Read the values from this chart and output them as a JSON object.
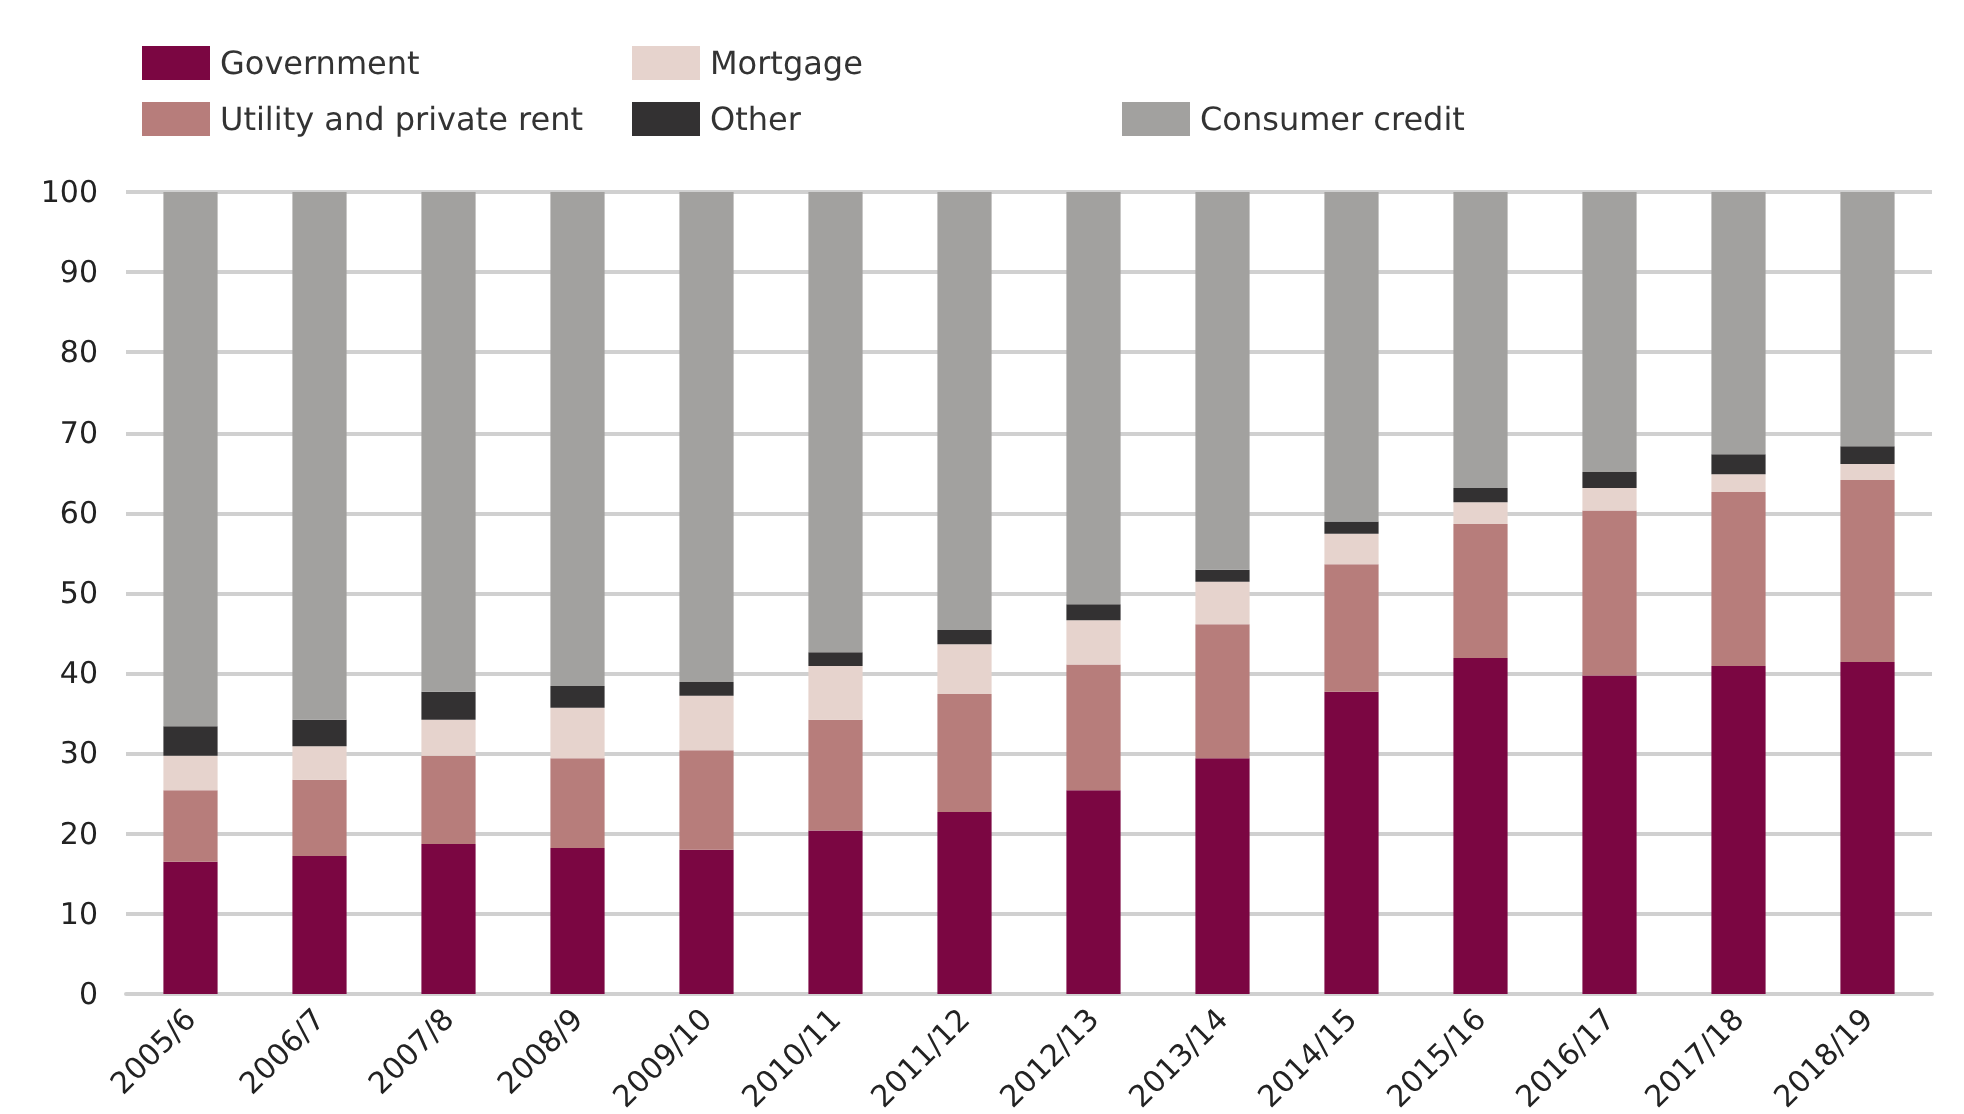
{
  "chart_data": {
    "type": "bar",
    "stacked": true,
    "categories": [
      "2005/6",
      "2006/7",
      "2007/8",
      "2008/9",
      "2009/10",
      "2010/11",
      "2011/12",
      "2012/13",
      "2013/14",
      "2014/15",
      "2015/16",
      "2016/17",
      "2017/18",
      "2018/19"
    ],
    "series": [
      {
        "name": "Government",
        "color": "#7b0642",
        "values": [
          16.5,
          17.2,
          18.7,
          18.2,
          18.0,
          20.4,
          22.7,
          25.4,
          29.4,
          37.7,
          41.9,
          39.7,
          40.9,
          41.4
        ]
      },
      {
        "name": "Utility and private rent",
        "color": "#b77d7b",
        "values": [
          8.9,
          9.5,
          11.0,
          11.2,
          12.4,
          13.8,
          14.7,
          15.7,
          16.7,
          15.9,
          16.7,
          20.6,
          21.7,
          22.7
        ]
      },
      {
        "name": "Mortgage",
        "color": "#e6d3cd",
        "values": [
          4.3,
          4.2,
          4.5,
          6.3,
          6.8,
          6.7,
          6.2,
          5.5,
          5.3,
          3.8,
          2.7,
          2.8,
          2.2,
          2.0
        ]
      },
      {
        "name": "Other",
        "color": "#333132",
        "values": [
          3.7,
          3.3,
          3.5,
          2.7,
          1.7,
          1.7,
          1.8,
          2.0,
          1.5,
          1.5,
          1.8,
          2.0,
          2.5,
          2.2
        ]
      },
      {
        "name": "Consumer credit",
        "color": "#a2a19f",
        "values": [
          66.6,
          65.8,
          62.3,
          61.6,
          61.1,
          57.4,
          54.6,
          51.4,
          47.1,
          41.1,
          36.9,
          34.9,
          32.7,
          31.7
        ]
      }
    ],
    "ylim": [
      0,
      100
    ],
    "yticks": [
      0,
      10,
      20,
      30,
      40,
      50,
      60,
      70,
      80,
      90,
      100
    ],
    "grid": "y",
    "legend": "top left"
  }
}
